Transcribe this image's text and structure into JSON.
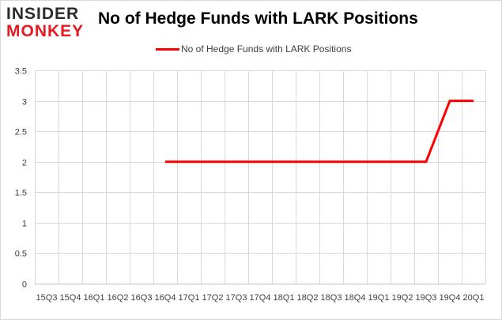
{
  "logo": {
    "line1": "INSIDER",
    "line2": "MONKEY"
  },
  "chart_data": {
    "type": "line",
    "title": "No of Hedge Funds with LARK Positions",
    "xlabel": "",
    "ylabel": "",
    "categories": [
      "15Q3",
      "15Q4",
      "16Q1",
      "16Q2",
      "16Q3",
      "16Q4",
      "17Q1",
      "17Q2",
      "17Q3",
      "17Q4",
      "18Q1",
      "18Q2",
      "18Q3",
      "18Q4",
      "19Q1",
      "19Q2",
      "19Q3",
      "19Q4",
      "20Q1"
    ],
    "series": [
      {
        "name": "No of Hedge Funds with LARK Positions",
        "color": "#ff0000",
        "values": [
          null,
          null,
          null,
          null,
          null,
          2,
          2,
          2,
          2,
          2,
          2,
          2,
          2,
          2,
          2,
          2,
          2,
          3,
          3
        ]
      }
    ],
    "ylim": [
      0,
      3.5
    ],
    "yticks": [
      "0",
      "0.5",
      "1",
      "1.5",
      "2",
      "2.5",
      "3",
      "3.5"
    ],
    "grid": true,
    "legend_position": "top-center"
  }
}
